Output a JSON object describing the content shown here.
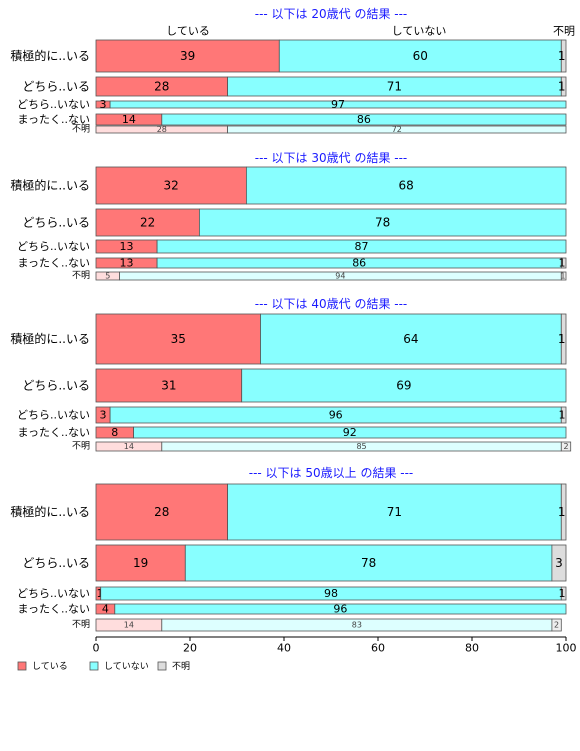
{
  "chart_data": {
    "type": "bar",
    "orientation": "horizontal",
    "stacked": true,
    "xlim": [
      0,
      100
    ],
    "x_ticks": [
      "0",
      "20",
      "40",
      "60",
      "80",
      "100"
    ],
    "column_headers": [
      "している",
      "していない",
      "不明"
    ],
    "legend": {
      "placement": "bottom-left",
      "entries": [
        "している",
        "していない",
        "不明"
      ]
    },
    "colors": {
      "main": [
        "#ff7777",
        "#88ffff",
        "#dddddd"
      ],
      "light": [
        "#ffdddd",
        "#ddffff",
        "#eeeeee"
      ],
      "title": "#1a1aff"
    },
    "panels": [
      {
        "title": "--- 以下は 20歳代 の結果 ---",
        "rows": [
          {
            "label": "積極的に..いる",
            "values": [
              39,
              60,
              1
            ]
          },
          {
            "label": "どちら..いる",
            "values": [
              28,
              71,
              1
            ]
          },
          {
            "label": "どちら..いない",
            "values": [
              3,
              97,
              0
            ]
          },
          {
            "label": "まったく..ない",
            "values": [
              14,
              86,
              0
            ]
          },
          {
            "label": "不明",
            "values": [
              28,
              72,
              0
            ]
          }
        ]
      },
      {
        "title": "--- 以下は 30歳代 の結果 ---",
        "rows": [
          {
            "label": "積極的に..いる",
            "values": [
              32,
              68,
              0
            ]
          },
          {
            "label": "どちら..いる",
            "values": [
              22,
              78,
              0
            ]
          },
          {
            "label": "どちら..いない",
            "values": [
              13,
              87,
              0
            ]
          },
          {
            "label": "まったく..ない",
            "values": [
              13,
              86,
              1
            ]
          },
          {
            "label": "不明",
            "values": [
              5,
              94,
              1
            ]
          }
        ]
      },
      {
        "title": "--- 以下は 40歳代 の結果 ---",
        "rows": [
          {
            "label": "積極的に..いる",
            "values": [
              35,
              64,
              1
            ]
          },
          {
            "label": "どちら..いる",
            "values": [
              31,
              69,
              0
            ]
          },
          {
            "label": "どちら..いない",
            "values": [
              3,
              96,
              1
            ]
          },
          {
            "label": "まったく..ない",
            "values": [
              8,
              92,
              0
            ]
          },
          {
            "label": "不明",
            "values": [
              14,
              85,
              2
            ]
          }
        ]
      },
      {
        "title": "--- 以下は 50歳以上 の結果 ---",
        "rows": [
          {
            "label": "積極的に..いる",
            "values": [
              28,
              71,
              1
            ]
          },
          {
            "label": "どちら..いる",
            "values": [
              19,
              78,
              3
            ]
          },
          {
            "label": "どちら..いない",
            "values": [
              1,
              98,
              1
            ]
          },
          {
            "label": "まったく..ない",
            "values": [
              4,
              96,
              0
            ]
          },
          {
            "label": "不明",
            "values": [
              14,
              83,
              2
            ]
          }
        ]
      }
    ]
  }
}
